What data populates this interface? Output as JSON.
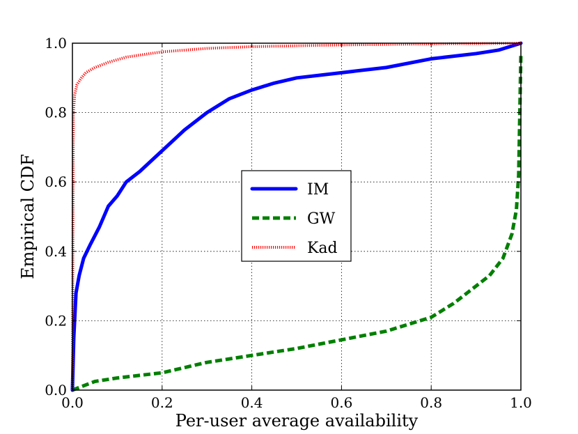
{
  "chart_data": {
    "type": "line",
    "title": "",
    "xlabel": "Per-user average availability",
    "ylabel": "Empirical CDF",
    "xlim": [
      0.0,
      1.0
    ],
    "ylim": [
      0.0,
      1.0
    ],
    "xticks": [
      "0.0",
      "0.2",
      "0.4",
      "0.6",
      "0.8",
      "1.0"
    ],
    "yticks": [
      "0.0",
      "0.2",
      "0.4",
      "0.6",
      "0.8",
      "1.0"
    ],
    "grid": true,
    "legend_position": "center",
    "series": [
      {
        "name": "IM",
        "color": "#0000ff",
        "style": "solid",
        "x": [
          0.0,
          0.003,
          0.008,
          0.015,
          0.025,
          0.04,
          0.06,
          0.08,
          0.1,
          0.12,
          0.15,
          0.2,
          0.25,
          0.3,
          0.35,
          0.4,
          0.45,
          0.5,
          0.6,
          0.7,
          0.8,
          0.9,
          0.95,
          1.0
        ],
        "y": [
          0.0,
          0.15,
          0.28,
          0.33,
          0.38,
          0.42,
          0.47,
          0.53,
          0.56,
          0.6,
          0.63,
          0.69,
          0.75,
          0.8,
          0.84,
          0.865,
          0.885,
          0.9,
          0.915,
          0.93,
          0.955,
          0.97,
          0.98,
          1.0
        ]
      },
      {
        "name": "GW",
        "color": "#007f00",
        "style": "dashed",
        "x": [
          0.0,
          0.05,
          0.1,
          0.2,
          0.3,
          0.4,
          0.5,
          0.6,
          0.7,
          0.75,
          0.8,
          0.85,
          0.9,
          0.93,
          0.96,
          0.98,
          0.99,
          0.995,
          1.0
        ],
        "y": [
          0.0,
          0.025,
          0.035,
          0.05,
          0.08,
          0.1,
          0.12,
          0.145,
          0.17,
          0.19,
          0.21,
          0.25,
          0.3,
          0.33,
          0.38,
          0.45,
          0.52,
          0.62,
          0.97
        ]
      },
      {
        "name": "Kad",
        "color": "#ff0000",
        "style": "dotted",
        "x": [
          0.0,
          0.002,
          0.005,
          0.01,
          0.02,
          0.03,
          0.05,
          0.08,
          0.12,
          0.2,
          0.3,
          0.4,
          0.6,
          0.8,
          1.0
        ],
        "y": [
          0.0,
          0.8,
          0.85,
          0.88,
          0.9,
          0.915,
          0.93,
          0.945,
          0.96,
          0.975,
          0.985,
          0.99,
          0.995,
          0.998,
          1.0
        ]
      }
    ]
  }
}
